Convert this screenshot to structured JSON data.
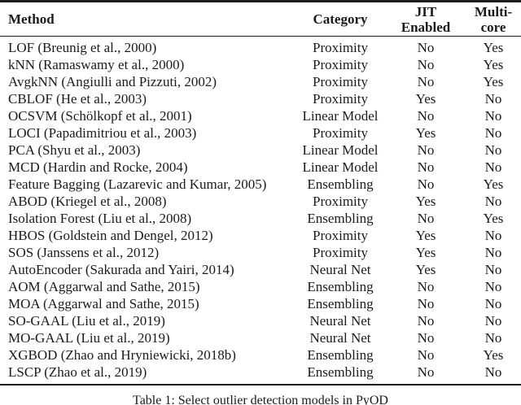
{
  "table": {
    "header": {
      "method": "Method",
      "category": "Category",
      "jit_line1": "JIT",
      "jit_line2": "Enabled",
      "multi_line1": "Multi-",
      "multi_line2": "core"
    },
    "rows": [
      {
        "method": "LOF (Breunig et al., 2000)",
        "category": "Proximity",
        "jit": "No",
        "multicore": "Yes"
      },
      {
        "method": "kNN (Ramaswamy et al., 2000)",
        "category": "Proximity",
        "jit": "No",
        "multicore": "Yes"
      },
      {
        "method": "AvgkNN (Angiulli and Pizzuti, 2002)",
        "category": "Proximity",
        "jit": "No",
        "multicore": "Yes"
      },
      {
        "method": "CBLOF (He et al., 2003)",
        "category": "Proximity",
        "jit": "Yes",
        "multicore": "No"
      },
      {
        "method": "OCSVM (Schölkopf et al., 2001)",
        "category": "Linear Model",
        "jit": "No",
        "multicore": "No"
      },
      {
        "method": "LOCI (Papadimitriou et al., 2003)",
        "category": "Proximity",
        "jit": "Yes",
        "multicore": "No"
      },
      {
        "method": "PCA (Shyu et al., 2003)",
        "category": "Linear Model",
        "jit": "No",
        "multicore": "No"
      },
      {
        "method": "MCD (Hardin and Rocke, 2004)",
        "category": "Linear Model",
        "jit": "No",
        "multicore": "No"
      },
      {
        "method": "Feature Bagging (Lazarevic and Kumar, 2005)",
        "category": "Ensembling",
        "jit": "No",
        "multicore": "Yes"
      },
      {
        "method": "ABOD (Kriegel et al., 2008)",
        "category": "Proximity",
        "jit": "Yes",
        "multicore": "No"
      },
      {
        "method": "Isolation Forest (Liu et al., 2008)",
        "category": "Ensembling",
        "jit": "No",
        "multicore": "Yes"
      },
      {
        "method": "HBOS (Goldstein and Dengel, 2012)",
        "category": "Proximity",
        "jit": "Yes",
        "multicore": "No"
      },
      {
        "method": "SOS (Janssens et al., 2012)",
        "category": "Proximity",
        "jit": "Yes",
        "multicore": "No"
      },
      {
        "method": "AutoEncoder (Sakurada and Yairi, 2014)",
        "category": "Neural Net",
        "jit": "Yes",
        "multicore": "No"
      },
      {
        "method": "AOM (Aggarwal and Sathe, 2015)",
        "category": "Ensembling",
        "jit": "No",
        "multicore": "No"
      },
      {
        "method": "MOA (Aggarwal and Sathe, 2015)",
        "category": "Ensembling",
        "jit": "No",
        "multicore": "No"
      },
      {
        "method": "SO-GAAL (Liu et al., 2019)",
        "category": "Neural Net",
        "jit": "No",
        "multicore": "No"
      },
      {
        "method": "MO-GAAL (Liu et al., 2019)",
        "category": "Neural Net",
        "jit": "No",
        "multicore": "No"
      },
      {
        "method": "XGBOD (Zhao and Hryniewicki, 2018b)",
        "category": "Ensembling",
        "jit": "No",
        "multicore": "Yes"
      },
      {
        "method": "LSCP (Zhao et al., 2019)",
        "category": "Ensembling",
        "jit": "No",
        "multicore": "No"
      }
    ]
  },
  "caption": "Table 1: Select outlier detection models in PyOD",
  "colors": {
    "text": "#1b1b1b",
    "rule": "#1c1c1c",
    "background": "#ffffff"
  }
}
